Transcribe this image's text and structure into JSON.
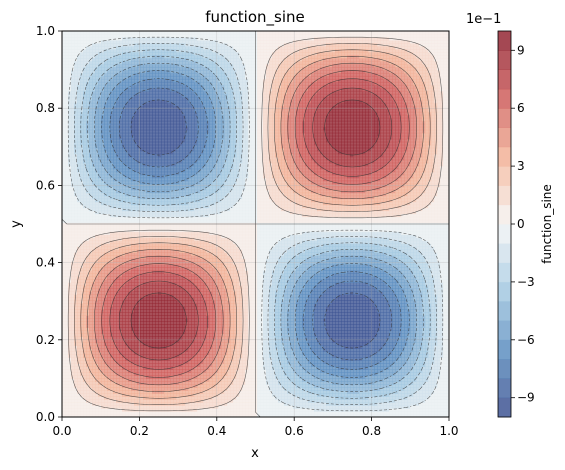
{
  "chart_data": {
    "type": "heatmap",
    "title": "function_sine",
    "xlabel": "x",
    "ylabel": "y",
    "xlim": [
      0.0,
      1.0
    ],
    "ylim": [
      0.0,
      1.0
    ],
    "x_ticks": [
      "0.0",
      "0.2",
      "0.4",
      "0.6",
      "0.8",
      "1.0"
    ],
    "y_ticks": [
      "0.0",
      "0.2",
      "0.4",
      "0.6",
      "0.8",
      "1.0"
    ],
    "grid": true,
    "function": "sin(2πx)·sin(2πy)",
    "value_range": [
      -1.0,
      1.0
    ],
    "colormap": "RdBu_r",
    "colormap_stops": [
      "#3b4c8c",
      "#5a8cbf",
      "#a7cbe2",
      "#f5f5f5",
      "#f4b79b",
      "#cd5a5a",
      "#8a1f2e"
    ],
    "colorbar": {
      "label": "function_sine",
      "offset_text": "1e−1",
      "ticks": [
        "−9",
        "−6",
        "−3",
        "0",
        "3",
        "6",
        "9"
      ],
      "tick_values": [
        -0.9,
        -0.6,
        -0.3,
        0.0,
        0.3,
        0.6,
        0.9
      ]
    },
    "contour_levels": [
      -0.9,
      -0.8,
      -0.7,
      -0.6,
      -0.5,
      -0.4,
      -0.3,
      -0.2,
      -0.1,
      0.0,
      0.1,
      0.2,
      0.3,
      0.4,
      0.5,
      0.6,
      0.7,
      0.8,
      0.9
    ],
    "extrema": [
      {
        "x": 0.25,
        "y": 0.75,
        "value": -1.0
      },
      {
        "x": 0.75,
        "y": 0.75,
        "value": 1.0
      },
      {
        "x": 0.25,
        "y": 0.25,
        "value": 1.0
      },
      {
        "x": 0.75,
        "y": 0.25,
        "value": -1.0
      }
    ]
  }
}
